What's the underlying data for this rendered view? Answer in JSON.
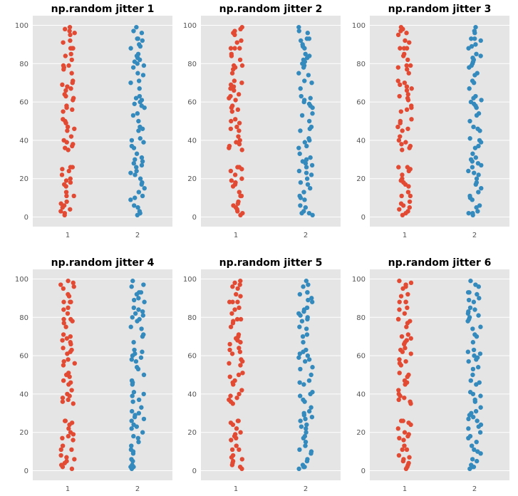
{
  "chart_data": [
    {
      "type": "scatter",
      "title": "np.random jitter 1"
    },
    {
      "type": "scatter",
      "title": "np.random jitter 2"
    },
    {
      "type": "scatter",
      "title": "np.random jitter 3"
    },
    {
      "type": "scatter",
      "title": "np.random jitter 4"
    },
    {
      "type": "scatter",
      "title": "np.random jitter 5"
    },
    {
      "type": "scatter",
      "title": "np.random jitter 6"
    }
  ],
  "shared": {
    "categories": [
      "1",
      "2"
    ],
    "yticks": [
      "0",
      "20",
      "40",
      "60",
      "80",
      "100"
    ],
    "ylim": [
      -5,
      105
    ],
    "xlim": [
      0.5,
      2.5
    ],
    "jitter": 0.1,
    "grid": true,
    "series": [
      {
        "name": "1",
        "x": 1,
        "color": "#E24A33",
        "values": [
          99,
          98,
          97,
          96,
          95,
          92,
          91,
          88,
          88,
          88,
          85,
          84,
          82,
          79,
          79,
          78,
          77,
          75,
          71,
          70,
          69,
          68,
          67,
          66,
          64,
          63,
          62,
          61,
          58,
          57,
          56,
          55,
          51,
          50,
          49,
          47,
          46,
          45,
          42,
          40,
          39,
          38,
          37,
          36,
          35,
          26,
          26,
          25,
          24,
          22,
          20,
          19,
          18,
          17,
          16,
          13,
          11,
          11,
          8,
          7,
          6,
          5,
          4,
          3,
          2,
          1
        ]
      },
      {
        "name": "2",
        "x": 2,
        "color": "#348ABD",
        "values": [
          99,
          97,
          96,
          93,
          93,
          92,
          90,
          89,
          88,
          85,
          84,
          83,
          82,
          81,
          80,
          79,
          78,
          75,
          74,
          71,
          70,
          67,
          63,
          62,
          61,
          60,
          59,
          58,
          57,
          54,
          53,
          50,
          47,
          46,
          45,
          41,
          40,
          39,
          37,
          36,
          33,
          31,
          30,
          29,
          28,
          27,
          26,
          24,
          23,
          22,
          20,
          18,
          17,
          15,
          13,
          11,
          10,
          9,
          6,
          5,
          3,
          2,
          2,
          1
        ]
      }
    ]
  }
}
